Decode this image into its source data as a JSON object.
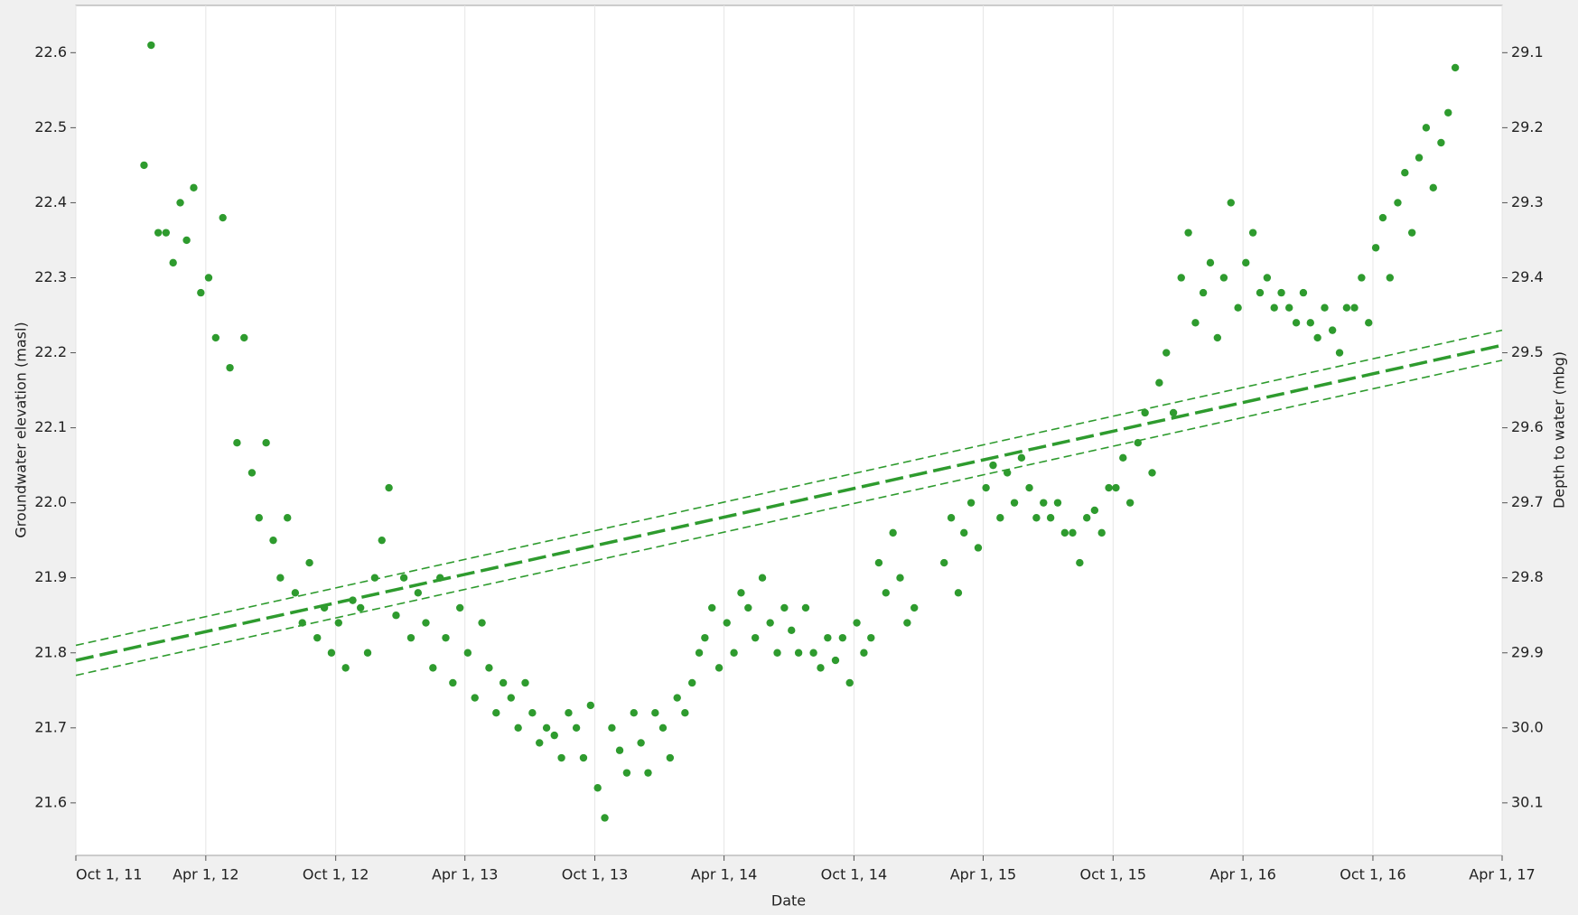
{
  "chart_data": {
    "type": "scatter",
    "x_label": "Date",
    "y_label": "Groundwater elevation (masl)",
    "y2_label": "Depth to water (mbg)",
    "grid": "x",
    "xlim": [
      "2011-10-01",
      "2017-04-01"
    ],
    "xticks": [
      {
        "value": "2011-10-01",
        "label": "Oct 1, 11"
      },
      {
        "value": "2012-04-01",
        "label": "Apr 1, 12"
      },
      {
        "value": "2012-10-01",
        "label": "Oct 1, 12"
      },
      {
        "value": "2013-04-01",
        "label": "Apr 1, 13"
      },
      {
        "value": "2013-10-01",
        "label": "Oct 1, 13"
      },
      {
        "value": "2014-04-01",
        "label": "Apr 1, 14"
      },
      {
        "value": "2014-10-01",
        "label": "Oct 1, 14"
      },
      {
        "value": "2015-04-01",
        "label": "Apr 1, 15"
      },
      {
        "value": "2015-10-01",
        "label": "Oct 1, 15"
      },
      {
        "value": "2016-04-01",
        "label": "Apr 1, 16"
      },
      {
        "value": "2016-10-01",
        "label": "Oct 1, 16"
      },
      {
        "value": "2017-04-01",
        "label": "Apr 1, 17"
      }
    ],
    "ylim": [
      21.53,
      22.663
    ],
    "yticks": [
      21.6,
      21.7,
      21.8,
      21.9,
      {
        "value": 22,
        "label": "22.0"
      },
      22.1,
      22.2,
      22.3,
      22.4,
      22.5,
      22.6
    ],
    "y2lim": [
      30.17,
      29.037
    ],
    "y2ticks": [
      29.1,
      29.2,
      29.3,
      29.4,
      29.5,
      29.6,
      29.7,
      29.8,
      29.9,
      {
        "value": 30,
        "label": "30.0"
      },
      30.1
    ],
    "series": [
      {
        "type": "scatter",
        "color": "#2e9b2e",
        "x": [
          "2012-01-05",
          "2012-01-15",
          "2012-01-25",
          "2012-02-05",
          "2012-02-15",
          "2012-02-25",
          "2012-03-05",
          "2012-03-15",
          "2012-03-25",
          "2012-04-05",
          "2012-04-15",
          "2012-04-25",
          "2012-05-05",
          "2012-05-15",
          "2012-05-25",
          "2012-06-05",
          "2012-06-15",
          "2012-06-25",
          "2012-07-05",
          "2012-07-15",
          "2012-07-25",
          "2012-08-05",
          "2012-08-15",
          "2012-08-25",
          "2012-09-05",
          "2012-09-15",
          "2012-09-25",
          "2012-10-05",
          "2012-10-15",
          "2012-10-25",
          "2012-11-05",
          "2012-11-15",
          "2012-11-25",
          "2012-12-05",
          "2012-12-15",
          "2012-12-25",
          "2013-01-05",
          "2013-01-15",
          "2013-01-25",
          "2013-02-05",
          "2013-02-15",
          "2013-02-25",
          "2013-03-05",
          "2013-03-15",
          "2013-03-25",
          "2013-04-05",
          "2013-04-15",
          "2013-04-25",
          "2013-05-05",
          "2013-05-15",
          "2013-05-25",
          "2013-06-05",
          "2013-06-15",
          "2013-06-25",
          "2013-07-05",
          "2013-07-15",
          "2013-07-25",
          "2013-08-05",
          "2013-08-15",
          "2013-08-25",
          "2013-09-05",
          "2013-09-15",
          "2013-09-25",
          "2013-10-05",
          "2013-10-15",
          "2013-10-25",
          "2013-11-05",
          "2013-11-15",
          "2013-11-25",
          "2013-12-05",
          "2013-12-15",
          "2013-12-25",
          "2014-01-05",
          "2014-01-15",
          "2014-01-25",
          "2014-02-05",
          "2014-02-15",
          "2014-02-25",
          "2014-03-05",
          "2014-03-15",
          "2014-03-25",
          "2014-04-05",
          "2014-04-15",
          "2014-04-25",
          "2014-05-05",
          "2014-05-15",
          "2014-05-25",
          "2014-06-05",
          "2014-06-15",
          "2014-06-25",
          "2014-07-05",
          "2014-07-15",
          "2014-07-25",
          "2014-08-05",
          "2014-08-15",
          "2014-08-25",
          "2014-09-05",
          "2014-09-15",
          "2014-09-25",
          "2014-10-05",
          "2014-10-15",
          "2014-10-25",
          "2014-11-05",
          "2014-11-15",
          "2014-11-25",
          "2014-12-05",
          "2014-12-15",
          "2014-12-25",
          "2015-02-05",
          "2015-02-15",
          "2015-02-25",
          "2015-03-05",
          "2015-03-15",
          "2015-03-25",
          "2015-04-05",
          "2015-04-15",
          "2015-04-25",
          "2015-05-05",
          "2015-05-15",
          "2015-05-25",
          "2015-06-05",
          "2015-06-15",
          "2015-06-25",
          "2015-07-05",
          "2015-07-15",
          "2015-07-25",
          "2015-08-05",
          "2015-08-15",
          "2015-08-25",
          "2015-09-05",
          "2015-09-15",
          "2015-09-25",
          "2015-10-05",
          "2015-10-15",
          "2015-10-25",
          "2015-11-05",
          "2015-11-15",
          "2015-11-25",
          "2015-12-05",
          "2015-12-15",
          "2015-12-25",
          "2016-01-05",
          "2016-01-15",
          "2016-01-25",
          "2016-02-05",
          "2016-02-15",
          "2016-02-25",
          "2016-03-05",
          "2016-03-15",
          "2016-03-25",
          "2016-04-05",
          "2016-04-15",
          "2016-04-25",
          "2016-05-05",
          "2016-05-15",
          "2016-05-25",
          "2016-06-05",
          "2016-06-15",
          "2016-06-25",
          "2016-07-05",
          "2016-07-15",
          "2016-07-25",
          "2016-08-05",
          "2016-08-15",
          "2016-08-25",
          "2016-09-05",
          "2016-09-15",
          "2016-09-25",
          "2016-10-05",
          "2016-10-15",
          "2016-10-25",
          "2016-11-05",
          "2016-11-15",
          "2016-11-25",
          "2016-12-05",
          "2016-12-15",
          "2016-12-25",
          "2017-01-05",
          "2017-01-15",
          "2017-01-25"
        ],
        "values": [
          22.45,
          22.61,
          22.36,
          22.36,
          22.32,
          22.4,
          22.35,
          22.42,
          22.28,
          22.3,
          22.22,
          22.38,
          22.18,
          22.08,
          22.22,
          22.04,
          21.98,
          22.08,
          21.95,
          21.9,
          21.98,
          21.88,
          21.84,
          21.92,
          21.82,
          21.86,
          21.8,
          21.84,
          21.78,
          21.87,
          21.86,
          21.8,
          21.9,
          21.95,
          22.02,
          21.85,
          21.9,
          21.82,
          21.88,
          21.84,
          21.78,
          21.9,
          21.82,
          21.76,
          21.86,
          21.8,
          21.74,
          21.84,
          21.78,
          21.72,
          21.76,
          21.74,
          21.7,
          21.76,
          21.72,
          21.68,
          21.7,
          21.69,
          21.66,
          21.72,
          21.7,
          21.66,
          21.73,
          21.62,
          21.58,
          21.7,
          21.67,
          21.64,
          21.72,
          21.68,
          21.64,
          21.72,
          21.7,
          21.66,
          21.74,
          21.72,
          21.76,
          21.8,
          21.82,
          21.86,
          21.78,
          21.84,
          21.8,
          21.88,
          21.86,
          21.82,
          21.9,
          21.84,
          21.8,
          21.86,
          21.83,
          21.8,
          21.86,
          21.8,
          21.78,
          21.82,
          21.79,
          21.82,
          21.76,
          21.84,
          21.8,
          21.82,
          21.92,
          21.88,
          21.96,
          21.9,
          21.84,
          21.86,
          21.92,
          21.98,
          21.88,
          21.96,
          22.0,
          21.94,
          22.02,
          22.05,
          21.98,
          22.04,
          22.0,
          22.06,
          22.02,
          21.98,
          22.0,
          21.98,
          22.0,
          21.96,
          21.96,
          21.92,
          21.98,
          21.99,
          21.96,
          22.02,
          22.02,
          22.06,
          22.0,
          22.08,
          22.12,
          22.04,
          22.16,
          22.2,
          22.12,
          22.3,
          22.36,
          22.24,
          22.28,
          22.32,
          22.22,
          22.3,
          22.4,
          22.26,
          22.32,
          22.36,
          22.28,
          22.3,
          22.26,
          22.28,
          22.26,
          22.24,
          22.28,
          22.24,
          22.22,
          22.26,
          22.23,
          22.2,
          22.26,
          22.26,
          22.3,
          22.24,
          22.34,
          22.38,
          22.3,
          22.4,
          22.44,
          22.36,
          22.46,
          22.5,
          22.42,
          22.48,
          22.52,
          22.58
        ]
      },
      {
        "type": "line",
        "color": "#2e9b2e",
        "line_style": "thick-dashed",
        "x": [
          "2011-10-01",
          "2017-04-01"
        ],
        "values": [
          21.79,
          22.21
        ]
      },
      {
        "type": "line",
        "color": "#2e9b2e",
        "line_style": "dashed",
        "x": [
          "2011-10-01",
          "2017-04-01"
        ],
        "values": [
          21.81,
          22.23
        ]
      },
      {
        "type": "line",
        "color": "#2e9b2e",
        "line_style": "dashed",
        "x": [
          "2011-10-01",
          "2017-04-01"
        ],
        "values": [
          21.77,
          22.19
        ]
      }
    ]
  }
}
